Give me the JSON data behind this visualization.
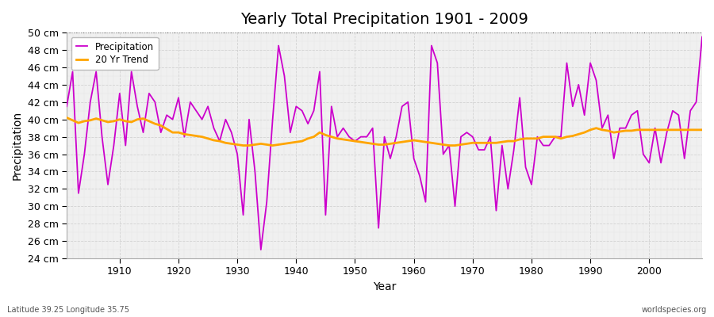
{
  "title": "Yearly Total Precipitation 1901 - 2009",
  "xlabel": "Year",
  "ylabel": "Precipitation",
  "years": [
    1901,
    1902,
    1903,
    1904,
    1905,
    1906,
    1907,
    1908,
    1909,
    1910,
    1911,
    1912,
    1913,
    1914,
    1915,
    1916,
    1917,
    1918,
    1919,
    1920,
    1921,
    1922,
    1923,
    1924,
    1925,
    1926,
    1927,
    1928,
    1929,
    1930,
    1931,
    1932,
    1933,
    1934,
    1935,
    1936,
    1937,
    1938,
    1939,
    1940,
    1941,
    1942,
    1943,
    1944,
    1945,
    1946,
    1947,
    1948,
    1949,
    1950,
    1951,
    1952,
    1953,
    1954,
    1955,
    1956,
    1957,
    1958,
    1959,
    1960,
    1961,
    1962,
    1963,
    1964,
    1965,
    1966,
    1967,
    1968,
    1969,
    1970,
    1971,
    1972,
    1973,
    1974,
    1975,
    1976,
    1977,
    1978,
    1979,
    1980,
    1981,
    1982,
    1983,
    1984,
    1985,
    1986,
    1987,
    1988,
    1989,
    1990,
    1991,
    1992,
    1993,
    1994,
    1995,
    1996,
    1997,
    1998,
    1999,
    2000,
    2001,
    2002,
    2003,
    2004,
    2005,
    2006,
    2007,
    2008,
    2009
  ],
  "precip": [
    41.5,
    45.5,
    31.5,
    36.0,
    42.0,
    45.5,
    38.0,
    32.5,
    37.0,
    43.0,
    37.0,
    45.5,
    41.5,
    38.5,
    43.0,
    42.0,
    38.5,
    40.5,
    40.0,
    42.5,
    38.0,
    42.0,
    41.0,
    40.0,
    41.5,
    39.0,
    37.5,
    40.0,
    38.5,
    36.0,
    29.0,
    40.0,
    34.0,
    25.0,
    30.5,
    40.0,
    48.5,
    45.0,
    38.5,
    41.5,
    41.0,
    39.5,
    41.0,
    45.5,
    29.0,
    41.5,
    38.0,
    39.0,
    38.0,
    37.5,
    38.0,
    38.0,
    39.0,
    27.5,
    38.0,
    35.5,
    38.0,
    41.5,
    42.0,
    35.5,
    33.5,
    30.5,
    48.5,
    46.5,
    36.0,
    37.0,
    30.0,
    38.0,
    38.5,
    38.0,
    36.5,
    36.5,
    38.0,
    29.5,
    37.0,
    32.0,
    36.5,
    42.5,
    34.5,
    32.5,
    38.0,
    37.0,
    37.0,
    38.0,
    38.0,
    46.5,
    41.5,
    44.0,
    40.5,
    46.5,
    44.5,
    39.0,
    40.5,
    35.5,
    39.0,
    39.0,
    40.5,
    41.0,
    36.0,
    35.0,
    39.0,
    35.0,
    38.5,
    41.0,
    40.5,
    35.5,
    41.0,
    42.0,
    49.5
  ],
  "trend": [
    40.2,
    39.9,
    39.6,
    39.8,
    39.9,
    40.1,
    39.9,
    39.7,
    39.8,
    40.0,
    39.8,
    39.7,
    40.0,
    40.1,
    39.8,
    39.5,
    39.3,
    38.9,
    38.5,
    38.5,
    38.3,
    38.2,
    38.1,
    38.0,
    37.8,
    37.6,
    37.5,
    37.3,
    37.2,
    37.1,
    37.0,
    37.0,
    37.1,
    37.2,
    37.1,
    37.0,
    37.1,
    37.2,
    37.3,
    37.4,
    37.5,
    37.8,
    38.0,
    38.5,
    38.2,
    38.0,
    37.8,
    37.7,
    37.6,
    37.5,
    37.4,
    37.3,
    37.2,
    37.1,
    37.1,
    37.2,
    37.3,
    37.4,
    37.5,
    37.6,
    37.5,
    37.4,
    37.3,
    37.2,
    37.1,
    37.0,
    37.0,
    37.1,
    37.2,
    37.3,
    37.3,
    37.3,
    37.3,
    37.3,
    37.4,
    37.5,
    37.5,
    37.7,
    37.8,
    37.8,
    37.8,
    38.0,
    38.0,
    38.0,
    37.8,
    38.0,
    38.1,
    38.3,
    38.5,
    38.8,
    39.0,
    38.8,
    38.7,
    38.5,
    38.6,
    38.7,
    38.7,
    38.8,
    38.8,
    38.8,
    38.8,
    38.8,
    38.8,
    38.8,
    38.8,
    38.8,
    38.8,
    38.8,
    38.8
  ],
  "precip_color": "#cc00cc",
  "trend_color": "#FFA500",
  "background_color": "#ffffff",
  "plot_bg_color": "#f0f0f0",
  "grid_major_color": "#cccccc",
  "grid_minor_color": "#e0e0e0",
  "ylim": [
    24,
    50
  ],
  "yticks": [
    24,
    26,
    28,
    30,
    32,
    34,
    36,
    38,
    40,
    42,
    44,
    46,
    48,
    50
  ],
  "xticks": [
    1910,
    1920,
    1930,
    1940,
    1950,
    1960,
    1970,
    1980,
    1990,
    2000
  ],
  "title_fontsize": 14,
  "label_fontsize": 10,
  "tick_fontsize": 9,
  "footer_left": "Latitude 39.25 Longitude 35.75",
  "footer_right": "worldspecies.org"
}
